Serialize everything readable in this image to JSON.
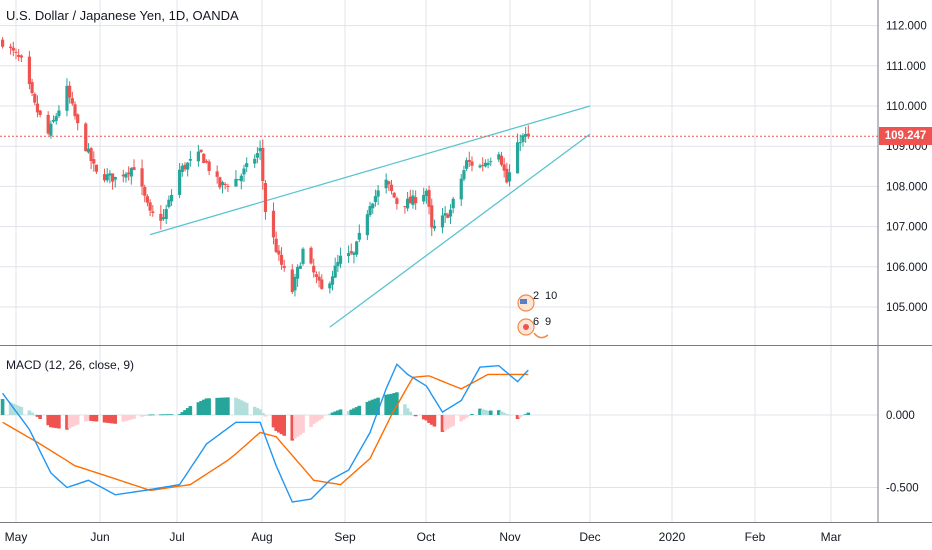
{
  "header": {
    "title": "U.S. Dollar / Japanese Yen, 1D, OANDA"
  },
  "macd_panel": {
    "title": "MACD (12, 26, close, 9)"
  },
  "price_tag": {
    "value": "109.247",
    "color": "#ef5350"
  },
  "events": {
    "top_count_a": "2",
    "top_count_b": "10",
    "bottom_count_a": "6",
    "bottom_count_b": "9"
  },
  "colors": {
    "up": "#26a69a",
    "down": "#ef5350",
    "channel": "#5bc4cf",
    "macd_line": "#2196f3",
    "signal_line": "#ff6d00",
    "hist_up_strong": "#26a69a",
    "hist_up_weak": "#b2dfdb",
    "hist_down_strong": "#ef5350",
    "hist_down_weak": "#ffcdd2",
    "grid": "#e0e3eb"
  },
  "chart_data": [
    {
      "type": "candlestick",
      "title": "U.S. Dollar / Japanese Yen, 1D, OANDA",
      "x_ticks": [
        "May",
        "Jun",
        "Jul",
        "Aug",
        "Sep",
        "Oct",
        "Nov",
        "Dec",
        "2020",
        "Feb",
        "Mar"
      ],
      "y_ticks": [
        "105.000",
        "106.000",
        "107.000",
        "108.000",
        "109.000",
        "110.000",
        "111.000",
        "112.000"
      ],
      "ylim": [
        104.3,
        112.6
      ],
      "last_price": 109.247,
      "anchors": [
        [
          "2019-04-26",
          111.6
        ],
        [
          "2019-05-03",
          111.1
        ],
        [
          "2019-05-08",
          110.0
        ],
        [
          "2019-05-13",
          109.3
        ],
        [
          "2019-05-20",
          110.4
        ],
        [
          "2019-05-24",
          109.5
        ],
        [
          "2019-05-31",
          108.3
        ],
        [
          "2019-06-07",
          108.2
        ],
        [
          "2019-06-14",
          108.5
        ],
        [
          "2019-06-20",
          107.3
        ],
        [
          "2019-06-25",
          107.2
        ],
        [
          "2019-07-01",
          108.4
        ],
        [
          "2019-07-09",
          108.8
        ],
        [
          "2019-07-16",
          108.0
        ],
        [
          "2019-07-23",
          108.2
        ],
        [
          "2019-07-31",
          108.9
        ],
        [
          "2019-08-02",
          107.4
        ],
        [
          "2019-08-07",
          106.2
        ],
        [
          "2019-08-12",
          105.4
        ],
        [
          "2019-08-16",
          106.4
        ],
        [
          "2019-08-23",
          105.4
        ],
        [
          "2019-08-26",
          105.7
        ],
        [
          "2019-08-30",
          106.2
        ],
        [
          "2019-09-04",
          106.3
        ],
        [
          "2019-09-10",
          107.6
        ],
        [
          "2019-09-16",
          108.1
        ],
        [
          "2019-09-20",
          107.6
        ],
        [
          "2019-09-25",
          107.6
        ],
        [
          "2019-10-01",
          107.9
        ],
        [
          "2019-10-03",
          106.9
        ],
        [
          "2019-10-10",
          107.4
        ],
        [
          "2019-10-16",
          108.6
        ],
        [
          "2019-10-21",
          108.5
        ],
        [
          "2019-10-28",
          108.9
        ],
        [
          "2019-10-31",
          108.1
        ],
        [
          "2019-11-05",
          109.2
        ],
        [
          "2019-11-08",
          109.25
        ]
      ],
      "channel": {
        "upper": [
          [
            "2019-06-20",
            106.8
          ],
          [
            "2019-12-01",
            110.0
          ]
        ],
        "lower": [
          [
            "2019-08-26",
            104.5
          ],
          [
            "2019-12-01",
            109.3
          ]
        ]
      }
    },
    {
      "type": "macd",
      "title": "MACD (12, 26, close, 9)",
      "y_ticks": [
        "0.000",
        "-0.500"
      ],
      "ylim": [
        -0.68,
        0.45
      ],
      "macd": [
        [
          "2019-04-26",
          0.15
        ],
        [
          "2019-05-06",
          -0.1
        ],
        [
          "2019-05-14",
          -0.4
        ],
        [
          "2019-05-20",
          -0.5
        ],
        [
          "2019-05-28",
          -0.45
        ],
        [
          "2019-06-07",
          -0.55
        ],
        [
          "2019-06-18",
          -0.52
        ],
        [
          "2019-07-01",
          -0.48
        ],
        [
          "2019-07-11",
          -0.2
        ],
        [
          "2019-07-22",
          -0.05
        ],
        [
          "2019-07-31",
          -0.05
        ],
        [
          "2019-08-06",
          -0.35
        ],
        [
          "2019-08-12",
          -0.6
        ],
        [
          "2019-08-19",
          -0.58
        ],
        [
          "2019-08-26",
          -0.45
        ],
        [
          "2019-09-02",
          -0.38
        ],
        [
          "2019-09-10",
          -0.12
        ],
        [
          "2019-09-16",
          0.18
        ],
        [
          "2019-09-20",
          0.35
        ],
        [
          "2019-09-24",
          0.28
        ],
        [
          "2019-10-01",
          0.2
        ],
        [
          "2019-10-07",
          0.02
        ],
        [
          "2019-10-14",
          0.1
        ],
        [
          "2019-10-21",
          0.33
        ],
        [
          "2019-10-28",
          0.34
        ],
        [
          "2019-11-04",
          0.23
        ],
        [
          "2019-11-08",
          0.31
        ]
      ],
      "signal": [
        [
          "2019-04-26",
          -0.05
        ],
        [
          "2019-05-10",
          -0.2
        ],
        [
          "2019-05-23",
          -0.35
        ],
        [
          "2019-06-07",
          -0.44
        ],
        [
          "2019-06-20",
          -0.52
        ],
        [
          "2019-07-05",
          -0.48
        ],
        [
          "2019-07-20",
          -0.3
        ],
        [
          "2019-07-31",
          -0.12
        ],
        [
          "2019-08-06",
          -0.15
        ],
        [
          "2019-08-20",
          -0.45
        ],
        [
          "2019-08-30",
          -0.48
        ],
        [
          "2019-09-10",
          -0.3
        ],
        [
          "2019-09-18",
          0.0
        ],
        [
          "2019-09-26",
          0.26
        ],
        [
          "2019-10-02",
          0.27
        ],
        [
          "2019-10-14",
          0.18
        ],
        [
          "2019-10-24",
          0.28
        ],
        [
          "2019-11-04",
          0.28
        ],
        [
          "2019-11-08",
          0.28
        ]
      ],
      "histogram_note": "histogram = macd - signal"
    }
  ]
}
